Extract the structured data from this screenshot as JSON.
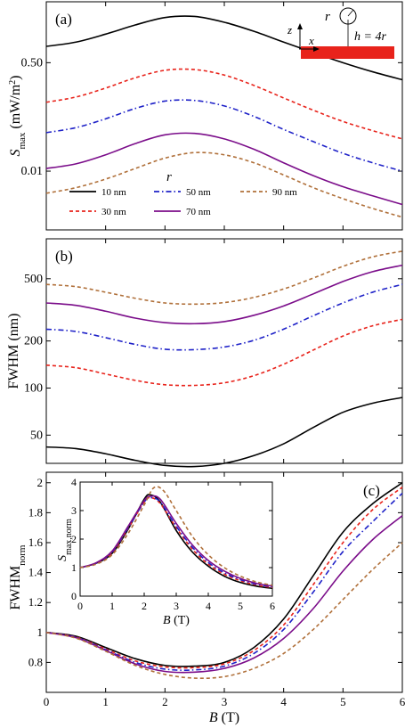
{
  "figure_labels": {
    "a": "(a)",
    "b": "(b)",
    "c": "(c)"
  },
  "schematic": {
    "z_label": "z",
    "x_label": "x",
    "r_label": "r",
    "h_label": "h = 4r",
    "slab_color": "#e8231b"
  },
  "colors": {
    "r10": "#000000",
    "r30": "#e8231b",
    "r50": "#1f22c8",
    "r70": "#7b0d8a",
    "r90": "#b0703a"
  },
  "chart_data": [
    {
      "id": "a",
      "type": "line",
      "ylabel_main": "S",
      "ylabel_sub": "max",
      "ylabel_unit": " (mW/m",
      "ylabel_sup": "2",
      "ylabel_close": ")",
      "ylog": true,
      "ylim": [
        0.0012,
        4.5
      ],
      "xlim": [
        0,
        6
      ],
      "yticks": [
        0.01,
        0.5
      ],
      "ytick_labels": [
        "0.01",
        "0.50"
      ],
      "legend_title": "r",
      "series": [
        {
          "name": "10 nm",
          "key": "r10",
          "style": "solid",
          "x": [
            0,
            0.5,
            1,
            1.5,
            2,
            2.5,
            3,
            3.5,
            4,
            4.5,
            5,
            5.5,
            6
          ],
          "y": [
            0.9,
            1.05,
            1.4,
            1.95,
            2.55,
            2.65,
            2.15,
            1.55,
            1.05,
            0.72,
            0.5,
            0.36,
            0.27
          ]
        },
        {
          "name": "30 nm",
          "key": "r30",
          "style": "dashed",
          "x": [
            0,
            0.5,
            1,
            1.5,
            2,
            2.5,
            3,
            3.5,
            4,
            4.5,
            5,
            5.5,
            6
          ],
          "y": [
            0.12,
            0.145,
            0.2,
            0.29,
            0.38,
            0.39,
            0.32,
            0.22,
            0.14,
            0.09,
            0.06,
            0.043,
            0.032
          ]
        },
        {
          "name": "50 nm",
          "key": "r50",
          "style": "dashdot",
          "x": [
            0,
            0.5,
            1,
            1.5,
            2,
            2.5,
            3,
            3.5,
            4,
            4.5,
            5,
            5.5,
            6
          ],
          "y": [
            0.04,
            0.048,
            0.066,
            0.096,
            0.125,
            0.128,
            0.105,
            0.072,
            0.045,
            0.029,
            0.019,
            0.0135,
            0.01
          ]
        },
        {
          "name": "70 nm",
          "key": "r70",
          "style": "solid",
          "x": [
            0,
            0.5,
            1,
            1.5,
            2,
            2.5,
            3,
            3.5,
            4,
            4.5,
            5,
            5.5,
            6
          ],
          "y": [
            0.011,
            0.013,
            0.018,
            0.027,
            0.037,
            0.039,
            0.032,
            0.022,
            0.0135,
            0.0085,
            0.0057,
            0.0041,
            0.003
          ]
        },
        {
          "name": "90 nm",
          "key": "r90",
          "style": "dashed",
          "x": [
            0,
            0.5,
            1,
            1.5,
            2,
            2.5,
            3,
            3.5,
            4,
            4.5,
            5,
            5.5,
            6
          ],
          "y": [
            0.0045,
            0.0055,
            0.0075,
            0.011,
            0.016,
            0.0195,
            0.018,
            0.0135,
            0.0087,
            0.0055,
            0.0037,
            0.0026,
            0.0019
          ]
        }
      ]
    },
    {
      "id": "b",
      "type": "line",
      "ylabel": "FWHM (nm)",
      "ylog": true,
      "ylim": [
        33,
        900
      ],
      "xlim": [
        0,
        6
      ],
      "yticks": [
        50,
        100,
        200,
        500
      ],
      "ytick_labels": [
        "50",
        "100",
        "200",
        "500"
      ],
      "series": [
        {
          "name": "10 nm",
          "key": "r10",
          "style": "solid",
          "x": [
            0,
            0.5,
            1,
            1.5,
            2,
            2.5,
            3,
            3.5,
            4,
            4.5,
            5,
            5.5,
            6
          ],
          "y": [
            42,
            41,
            38,
            34.5,
            32,
            31.5,
            33,
            37,
            44,
            56,
            70,
            80,
            87
          ]
        },
        {
          "name": "30 nm",
          "key": "r30",
          "style": "dashed",
          "x": [
            0,
            0.5,
            1,
            1.5,
            2,
            2.5,
            3,
            3.5,
            4,
            4.5,
            5,
            5.5,
            6
          ],
          "y": [
            140,
            135,
            123,
            112,
            105,
            104,
            108,
            120,
            142,
            175,
            215,
            250,
            275
          ]
        },
        {
          "name": "50 nm",
          "key": "r50",
          "style": "dashdot",
          "x": [
            0,
            0.5,
            1,
            1.5,
            2,
            2.5,
            3,
            3.5,
            4,
            4.5,
            5,
            5.5,
            6
          ],
          "y": [
            238,
            230,
            210,
            190,
            177,
            176,
            183,
            202,
            238,
            290,
            350,
            410,
            460
          ]
        },
        {
          "name": "70 nm",
          "key": "r70",
          "style": "solid",
          "x": [
            0,
            0.5,
            1,
            1.5,
            2,
            2.5,
            3,
            3.5,
            4,
            4.5,
            5,
            5.5,
            6
          ],
          "y": [
            350,
            338,
            310,
            280,
            262,
            258,
            266,
            292,
            335,
            400,
            480,
            555,
            610
          ]
        },
        {
          "name": "90 nm",
          "key": "r90",
          "style": "dashed",
          "x": [
            0,
            0.5,
            1,
            1.5,
            2,
            2.5,
            3,
            3.5,
            4,
            4.5,
            5,
            5.5,
            6
          ],
          "y": [
            460,
            445,
            410,
            375,
            350,
            344,
            352,
            380,
            430,
            505,
            600,
            690,
            750
          ]
        }
      ]
    },
    {
      "id": "c",
      "type": "line",
      "ylabel_main": "FWHM",
      "ylabel_sub": "norm",
      "xlabel": "B (T)",
      "ylim": [
        0.6,
        2.07
      ],
      "xlim": [
        0,
        6
      ],
      "xticks": [
        0,
        1,
        2,
        3,
        4,
        5,
        6
      ],
      "yticks": [
        0.8,
        1,
        1.2,
        1.4,
        1.6,
        1.8,
        2
      ],
      "ytick_labels": [
        "0.8",
        "1",
        "1.2",
        "1.4",
        "1.6",
        "1.8",
        "2"
      ],
      "series": [
        {
          "name": "10 nm",
          "key": "r10",
          "style": "solid",
          "x": [
            0,
            0.5,
            1,
            1.5,
            2,
            2.5,
            3,
            3.5,
            4,
            4.5,
            5,
            5.5,
            6
          ],
          "y": [
            1,
            0.975,
            0.9,
            0.825,
            0.78,
            0.775,
            0.8,
            0.9,
            1.09,
            1.38,
            1.67,
            1.86,
            2.0
          ]
        },
        {
          "name": "30 nm",
          "key": "r30",
          "style": "dashed",
          "x": [
            0,
            0.5,
            1,
            1.5,
            2,
            2.5,
            3,
            3.5,
            4,
            4.5,
            5,
            5.5,
            6
          ],
          "y": [
            1,
            0.97,
            0.89,
            0.81,
            0.77,
            0.765,
            0.79,
            0.88,
            1.05,
            1.32,
            1.6,
            1.82,
            1.97
          ]
        },
        {
          "name": "50 nm",
          "key": "r50",
          "style": "dashdot",
          "x": [
            0,
            0.5,
            1,
            1.5,
            2,
            2.5,
            3,
            3.5,
            4,
            4.5,
            5,
            5.5,
            6
          ],
          "y": [
            1,
            0.968,
            0.885,
            0.8,
            0.755,
            0.75,
            0.775,
            0.86,
            1.02,
            1.27,
            1.54,
            1.74,
            1.93
          ]
        },
        {
          "name": "70 nm",
          "key": "r70",
          "style": "solid",
          "x": [
            0,
            0.5,
            1,
            1.5,
            2,
            2.5,
            3,
            3.5,
            4,
            4.5,
            5,
            5.5,
            6
          ],
          "y": [
            1,
            0.965,
            0.88,
            0.79,
            0.74,
            0.735,
            0.76,
            0.83,
            0.96,
            1.16,
            1.41,
            1.62,
            1.78
          ]
        },
        {
          "name": "90 nm",
          "key": "r90",
          "style": "dashed",
          "x": [
            0,
            0.5,
            1,
            1.5,
            2,
            2.5,
            3,
            3.5,
            4,
            4.5,
            5,
            5.5,
            6
          ],
          "y": [
            1,
            0.962,
            0.875,
            0.78,
            0.72,
            0.695,
            0.705,
            0.76,
            0.86,
            1.02,
            1.22,
            1.42,
            1.6
          ]
        }
      ]
    },
    {
      "id": "c_inset",
      "type": "line",
      "ylabel_main": "S",
      "ylabel_sub": "max,norm",
      "xlabel": "B (T)",
      "ylim": [
        0,
        4
      ],
      "xlim": [
        0,
        6
      ],
      "xticks": [
        0,
        1,
        2,
        3,
        4,
        5,
        6
      ],
      "yticks": [
        0,
        1,
        2,
        3,
        4
      ],
      "series": [
        {
          "name": "10 nm",
          "key": "r10",
          "style": "solid",
          "x": [
            0,
            0.5,
            1,
            1.5,
            2,
            2.2,
            2.5,
            3,
            3.5,
            4,
            4.5,
            5,
            5.5,
            6
          ],
          "y": [
            1,
            1.15,
            1.5,
            2.35,
            3.4,
            3.55,
            3.3,
            2.3,
            1.55,
            1.05,
            0.7,
            0.48,
            0.35,
            0.27
          ]
        },
        {
          "name": "30 nm",
          "key": "r30",
          "style": "dashed",
          "x": [
            0,
            0.5,
            1,
            1.5,
            2,
            2.2,
            2.5,
            3,
            3.5,
            4,
            4.5,
            5,
            5.5,
            6
          ],
          "y": [
            1,
            1.15,
            1.52,
            2.38,
            3.3,
            3.45,
            3.25,
            2.4,
            1.65,
            1.12,
            0.77,
            0.54,
            0.39,
            0.3
          ]
        },
        {
          "name": "50 nm",
          "key": "r50",
          "style": "dashdot",
          "x": [
            0,
            0.5,
            1,
            1.5,
            2,
            2.2,
            2.5,
            3,
            3.5,
            4,
            4.5,
            5,
            5.5,
            6
          ],
          "y": [
            1,
            1.16,
            1.55,
            2.4,
            3.3,
            3.45,
            3.3,
            2.45,
            1.72,
            1.18,
            0.82,
            0.58,
            0.42,
            0.33
          ]
        },
        {
          "name": "70 nm",
          "key": "r70",
          "style": "solid",
          "x": [
            0,
            0.5,
            1,
            1.5,
            2,
            2.2,
            2.5,
            3,
            3.5,
            4,
            4.5,
            5,
            5.5,
            6
          ],
          "y": [
            1,
            1.17,
            1.58,
            2.45,
            3.35,
            3.5,
            3.4,
            2.55,
            1.8,
            1.25,
            0.88,
            0.62,
            0.45,
            0.35
          ]
        },
        {
          "name": "90 nm",
          "key": "r90",
          "style": "dashed",
          "x": [
            0,
            0.5,
            1,
            1.5,
            2,
            2.3,
            2.6,
            3,
            3.5,
            4,
            4.5,
            5,
            5.5,
            6
          ],
          "y": [
            1,
            1.12,
            1.45,
            2.2,
            3.2,
            3.8,
            3.7,
            3.0,
            2.1,
            1.45,
            1.0,
            0.7,
            0.5,
            0.38
          ]
        }
      ]
    }
  ]
}
